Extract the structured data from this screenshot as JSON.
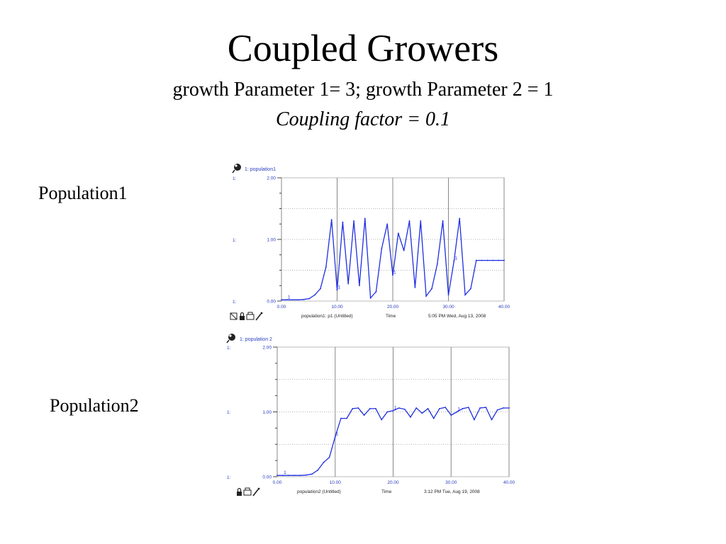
{
  "slide": {
    "title": "Coupled Growers",
    "subtitle": "growth Parameter 1= 3; growth Parameter 2 = 1",
    "subtitle2": "Coupling factor = 0.1"
  },
  "labels": {
    "pop1": "Population1",
    "pop2": "Population2"
  },
  "colors": {
    "series": "#1f2fe0",
    "axis_text": "#2a3dbf",
    "grid": "#888888"
  },
  "chart_data": [
    {
      "type": "line",
      "legend": "1: population1",
      "x": [
        0,
        1,
        2,
        3,
        4,
        5,
        6,
        7,
        8,
        9,
        10,
        11,
        12,
        13,
        14,
        15,
        16,
        17,
        18,
        19,
        20,
        21,
        22,
        23,
        24,
        25,
        26,
        27,
        28,
        29,
        30,
        31,
        32,
        33,
        34,
        35,
        36,
        37,
        38,
        39,
        40
      ],
      "series": [
        {
          "name": "population1",
          "values": [
            0.02,
            0.02,
            0.02,
            0.02,
            0.025,
            0.04,
            0.1,
            0.2,
            0.55,
            1.32,
            0.18,
            1.28,
            0.28,
            1.3,
            0.25,
            1.34,
            0.05,
            0.15,
            0.85,
            1.25,
            0.42,
            1.1,
            0.82,
            1.3,
            0.22,
            1.3,
            0.08,
            0.2,
            0.6,
            1.3,
            0.1,
            0.65,
            1.34,
            0.1,
            0.2,
            0.66,
            0.66,
            0.66,
            0.66,
            0.66,
            0.66
          ]
        }
      ],
      "xlim": [
        0,
        40
      ],
      "ylim": [
        0,
        2
      ],
      "x_ticks": [
        "0.00",
        "10.00",
        "20.00",
        "30.00",
        "40.00"
      ],
      "y_ticks": [
        "0.00",
        "1.00",
        "2.00"
      ],
      "y_prefix": "1:",
      "xlabel": "Time",
      "footer_left": "population1: p1 (Untitled)",
      "footer_right": "5:05 PM   Wed, Aug 13, 2008"
    },
    {
      "type": "line",
      "legend": "1: population 2",
      "x": [
        0,
        1,
        2,
        3,
        4,
        5,
        6,
        7,
        8,
        9,
        10,
        11,
        12,
        13,
        14,
        15,
        16,
        17,
        18,
        19,
        20,
        21,
        22,
        23,
        24,
        25,
        26,
        27,
        28,
        29,
        30,
        31,
        32,
        33,
        34,
        35,
        36,
        37,
        38,
        39,
        40
      ],
      "series": [
        {
          "name": "population 2",
          "values": [
            0.02,
            0.02,
            0.02,
            0.02,
            0.02,
            0.025,
            0.04,
            0.1,
            0.22,
            0.3,
            0.62,
            0.9,
            0.9,
            1.05,
            1.06,
            0.95,
            1.05,
            1.05,
            0.88,
            1.0,
            1.02,
            1.06,
            1.04,
            0.92,
            1.06,
            0.98,
            1.05,
            0.9,
            1.05,
            1.07,
            0.95,
            1.0,
            1.05,
            1.07,
            0.88,
            1.06,
            1.07,
            0.88,
            1.03,
            1.06,
            1.06
          ]
        }
      ],
      "xlim": [
        0,
        40
      ],
      "ylim": [
        0,
        2
      ],
      "x_ticks": [
        "0.00",
        "10.00",
        "20.00",
        "30.00",
        "40.00"
      ],
      "y_ticks": [
        "0.00",
        "1.00",
        "2.00"
      ],
      "y_prefix": "1:",
      "xlabel": "Time",
      "footer_left": "population2 (Untitled)",
      "footer_right": "3:12 PM   Tue, Aug 19, 2008"
    }
  ]
}
